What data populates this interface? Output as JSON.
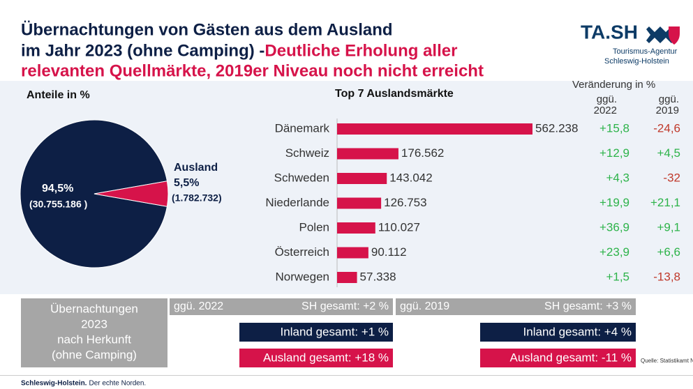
{
  "header": {
    "title_lines": [
      "Übernachtungen von Gästen aus dem Ausland",
      "im Jahr 2023 (ohne Camping) - "
    ],
    "title_highlight": [
      "Deutliche Erholung aller",
      "relevanten Quellmärkte, 2019er Niveau noch nicht erreicht"
    ],
    "logo": "TA.SH",
    "logo_sub": [
      "Tourismus-Agentur",
      "Schleswig-Holstein"
    ]
  },
  "chart_data": [
    {
      "type": "pie",
      "title": "Anteile in %",
      "categories": [
        null,
        "Ausland"
      ],
      "values": [
        94.5,
        5.5
      ],
      "value_labels": [
        "94,5%",
        "5,5%"
      ],
      "sub_labels": [
        "(30.755.186 )",
        "(1.782.732)"
      ],
      "colors": [
        "#0d1f45",
        "#d6134a"
      ]
    },
    {
      "type": "hbar",
      "title": "Top 7 Auslandsmärkte",
      "categories": [
        "Dänemark",
        "Schweiz",
        "Schweden",
        "Niederlande",
        "Polen",
        "Österreich",
        "Norwegen"
      ],
      "values": [
        562238,
        176562,
        143042,
        126753,
        110027,
        90112,
        57338
      ],
      "value_labels": [
        "562.238",
        "176.562",
        "143.042",
        "126.753",
        "110.027",
        "90.112",
        "57.338"
      ],
      "color": "#d6134a"
    }
  ],
  "changes": {
    "title": "Veränderung in %",
    "columns": [
      {
        "header": [
          "ggü.",
          "2022"
        ],
        "values": [
          "+15,8",
          "+12,9",
          "+4,3",
          "+19,9",
          "+36,9",
          "+23,9",
          "+1,5"
        ]
      },
      {
        "header": [
          "ggü.",
          "2019"
        ],
        "values": [
          "-24,6",
          "+4,5",
          "-32",
          "+21,1",
          "+9,1",
          "+6,6",
          "-13,8"
        ]
      }
    ]
  },
  "summary": {
    "label": [
      "Übernachtungen",
      "2023",
      "nach Herkunft",
      "(ohne Camping)"
    ],
    "groups": [
      {
        "name": "ggü. 2022",
        "sh": "SH gesamt: +2 %",
        "inland": "Inland gesamt: +1 %",
        "ausland": "Ausland gesamt: +18 %"
      },
      {
        "name": "ggü. 2019",
        "sh": "SH gesamt: +3 %",
        "inland": "Inland gesamt: +4 %",
        "ausland": "Ausland gesamt: -11 %"
      }
    ]
  },
  "footer": {
    "left": "Schleswig-Holstein.",
    "left_tag": "Der echte Norden.",
    "source": "Quelle: Statistikamt N"
  }
}
